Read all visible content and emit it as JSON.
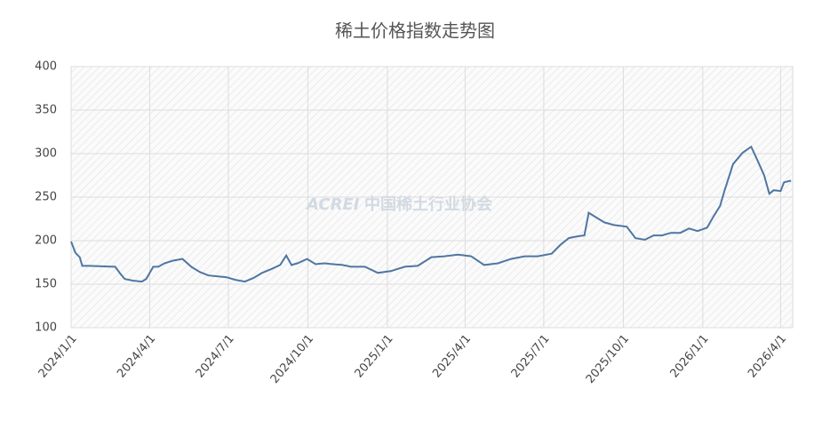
{
  "chart_data": {
    "type": "line",
    "title": "稀土价格指数走势图",
    "watermark": [
      "ACREI",
      "中国稀土行业协会"
    ],
    "x": [
      "2024/1/1",
      "2024/1/6",
      "2024/1/11",
      "2024/1/14",
      "2024/1/22",
      "2024/2/21",
      "2024/2/27",
      "2024/3/3",
      "2024/3/13",
      "2024/3/23",
      "2024/3/28",
      "2024/4/5",
      "2024/4/11",
      "2024/4/18",
      "2024/4/28",
      "2024/5/9",
      "2024/5/19",
      "2024/5/29",
      "2024/6/8",
      "2024/6/19",
      "2024/6/29",
      "2024/7/9",
      "2024/7/20",
      "2024/7/30",
      "2024/8/9",
      "2024/8/19",
      "2024/8/30",
      "2024/9/6",
      "2024/9/12",
      "2024/9/19",
      "2024/9/30",
      "2024/10/10",
      "2024/10/20",
      "2024/10/30",
      "2024/11/10",
      "2024/11/20",
      "2024/12/6",
      "2024/12/21",
      "2025/1/5",
      "2025/1/21",
      "2025/2/5",
      "2025/2/21",
      "2025/3/8",
      "2025/3/24",
      "2025/4/8",
      "2025/4/23",
      "2025/5/9",
      "2025/5/24",
      "2025/6/9",
      "2025/6/24",
      "2025/7/10",
      "2025/7/20",
      "2025/7/30",
      "2025/8/9",
      "2025/8/17",
      "2025/8/22",
      "2025/8/30",
      "2025/9/9",
      "2025/9/20",
      "2025/10/5",
      "2025/10/15",
      "2025/10/26",
      "2025/11/5",
      "2025/11/15",
      "2025/11/25",
      "2025/12/6",
      "2025/12/16",
      "2025/12/26",
      "2026/1/6",
      "2026/1/13",
      "2026/1/21",
      "2026/1/26",
      "2026/2/5",
      "2026/2/16",
      "2026/2/26",
      "2026/3/5",
      "2026/3/13",
      "2026/3/19",
      "2026/3/24",
      "2026/4/1",
      "2026/4/5",
      "2026/4/13"
    ],
    "series": [
      {
        "name": "稀土价格指数",
        "color": "#4f76a3",
        "values": [
          199,
          186,
          181,
          171,
          171,
          170,
          162,
          156,
          154,
          153,
          156,
          170,
          170,
          174,
          177,
          179,
          170,
          164,
          160,
          159,
          158,
          155,
          153,
          157,
          163,
          167,
          172,
          183,
          172,
          174,
          179,
          173,
          174,
          173,
          172,
          170,
          170,
          163,
          165,
          170,
          171,
          181,
          182,
          184,
          182,
          172,
          174,
          179,
          182,
          182,
          185,
          195,
          203,
          205,
          206,
          232,
          227,
          221,
          218,
          216,
          203,
          201,
          206,
          206,
          209,
          209,
          214,
          211,
          215,
          227,
          240,
          257,
          288,
          301,
          308,
          293,
          275,
          254,
          258,
          257,
          267,
          269
        ]
      }
    ],
    "xlim": [
      "2024/1/1",
      "2026/4/15"
    ],
    "xticks": [
      "2024/1/1",
      "2024/4/1",
      "2024/7/1",
      "2024/10/1",
      "2025/1/1",
      "2025/4/1",
      "2025/7/1",
      "2025/10/1",
      "2026/1/1",
      "2026/4/1"
    ],
    "ylim": [
      100,
      400
    ],
    "yticks": [
      100,
      150,
      200,
      250,
      300,
      350,
      400
    ],
    "grid": true
  }
}
